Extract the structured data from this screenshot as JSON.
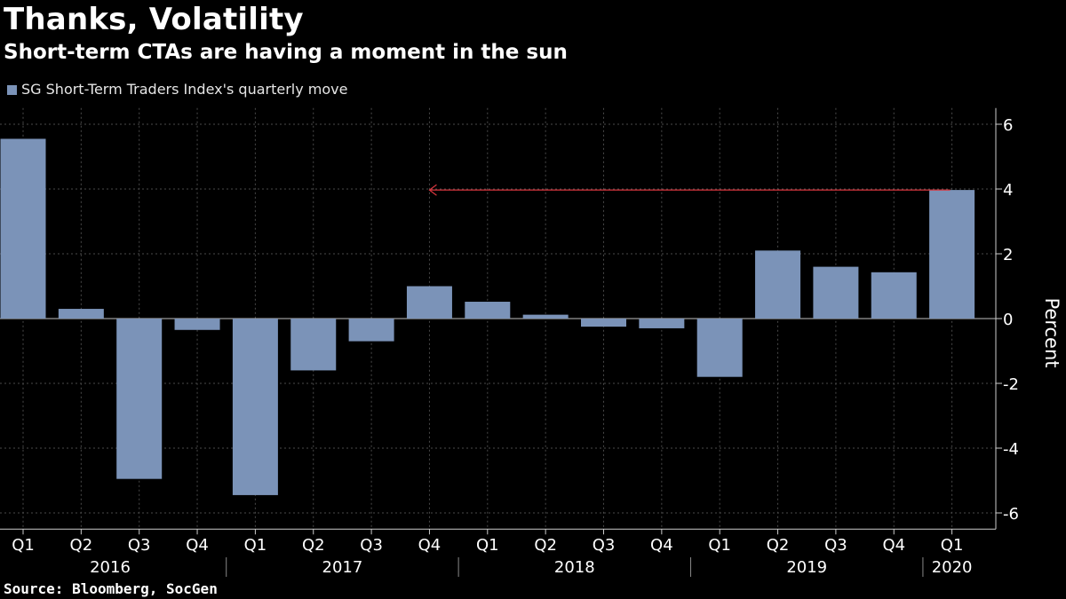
{
  "title": "Thanks, Volatility",
  "subtitle": "Short-term CTAs are having a moment in the sun",
  "source": "Source: Bloomberg, SocGen",
  "colors": {
    "background": "#000000",
    "bar": "#7b93b8",
    "arrow": "#d9363e",
    "grid": "#4a4a4a",
    "axis": "#cccccc"
  },
  "chart_data": {
    "type": "bar",
    "title": "Thanks, Volatility",
    "subtitle": "Short-term CTAs are having a moment in the sun",
    "xlabel": "",
    "ylabel": "Percent",
    "ylim": [
      -6.5,
      6.5
    ],
    "yticks": [
      6,
      4,
      2,
      0,
      -2,
      -4,
      -6
    ],
    "grid": true,
    "legend_position": "top-left",
    "categories": [
      "Q1",
      "Q2",
      "Q3",
      "Q4",
      "Q1",
      "Q2",
      "Q3",
      "Q4",
      "Q1",
      "Q2",
      "Q3",
      "Q4",
      "Q1",
      "Q2",
      "Q3",
      "Q4",
      "Q1"
    ],
    "years": [
      {
        "label": "2016",
        "quarters": 4
      },
      {
        "label": "2017",
        "quarters": 4
      },
      {
        "label": "2018",
        "quarters": 4
      },
      {
        "label": "2019",
        "quarters": 4
      },
      {
        "label": "2020",
        "quarters": 1
      }
    ],
    "series": [
      {
        "name": "SG Short-Term Traders Index's quarterly move",
        "values": [
          5.55,
          0.3,
          -4.95,
          -0.35,
          -5.45,
          -1.6,
          -0.7,
          1.0,
          0.52,
          0.12,
          -0.25,
          -0.3,
          -1.8,
          2.1,
          1.6,
          1.43,
          3.97
        ]
      }
    ],
    "annotations": [
      {
        "type": "arrow",
        "from_category_index": 16,
        "to_category_index": 7,
        "y": 3.97
      }
    ]
  }
}
